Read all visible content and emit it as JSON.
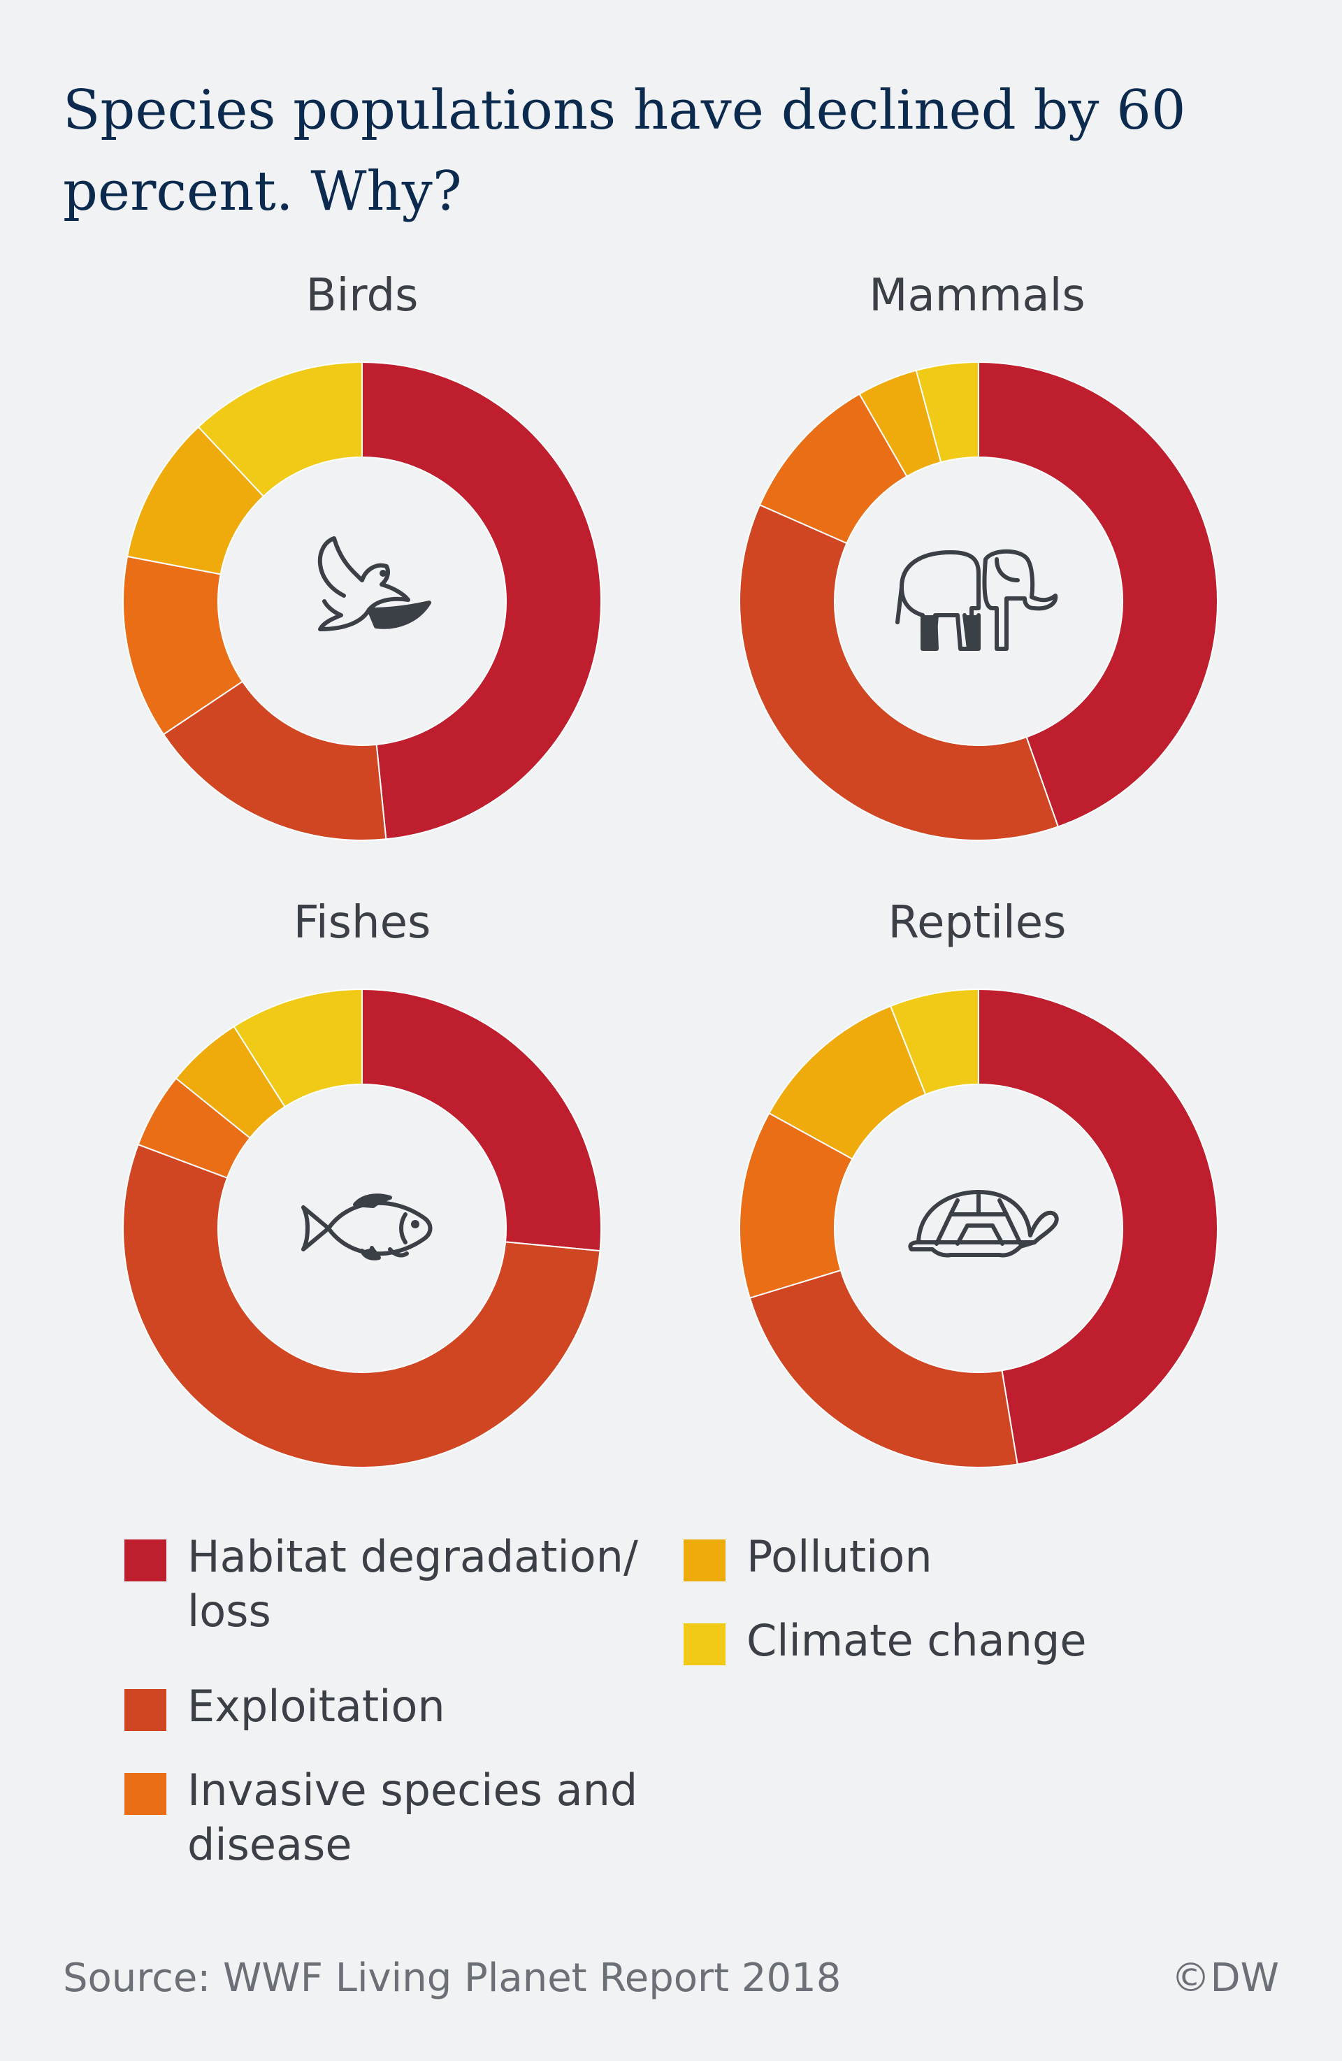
{
  "title": "Species populations have declined by 60 percent. Why?",
  "colors": {
    "habitat": "#be1e2d",
    "exploitation": "#d04522",
    "invasive": "#e96e16",
    "pollution": "#efaa0c",
    "climate": "#f0ca16"
  },
  "chart_data": [
    {
      "type": "pie",
      "title": "Birds",
      "icon": "bird-icon",
      "categories": [
        "Habitat degradation/ loss",
        "Exploitation",
        "Invasive species and disease",
        "Pollution",
        "Climate change"
      ],
      "values": [
        48.4,
        17.2,
        12.4,
        10.0,
        12.0
      ]
    },
    {
      "type": "pie",
      "title": "Mammals",
      "icon": "elephant-icon",
      "categories": [
        "Habitat degradation/ loss",
        "Exploitation",
        "Invasive species and disease",
        "Pollution",
        "Climate change"
      ],
      "values": [
        44.6,
        37.0,
        10.1,
        4.1,
        4.2
      ]
    },
    {
      "type": "pie",
      "title": "Fishes",
      "icon": "fish-icon",
      "categories": [
        "Habitat degradation/ loss",
        "Exploitation",
        "Invasive species and disease",
        "Pollution",
        "Climate change"
      ],
      "values": [
        26.5,
        54.2,
        5.1,
        5.2,
        9.0
      ]
    },
    {
      "type": "pie",
      "title": "Reptiles",
      "icon": "turtle-icon",
      "categories": [
        "Habitat degradation/ loss",
        "Exploitation",
        "Invasive species and disease",
        "Pollution",
        "Climate change"
      ],
      "values": [
        47.4,
        22.9,
        12.7,
        11.0,
        6.0
      ]
    }
  ],
  "legend": {
    "habitat": "Habitat degradation/ loss",
    "exploitation": "Exploitation",
    "invasive": "Invasive species and disease",
    "pollution": "Pollution",
    "climate": "Climate change"
  },
  "footer": {
    "source": "Source: WWF Living Planet Report 2018",
    "credit": "©DW"
  }
}
